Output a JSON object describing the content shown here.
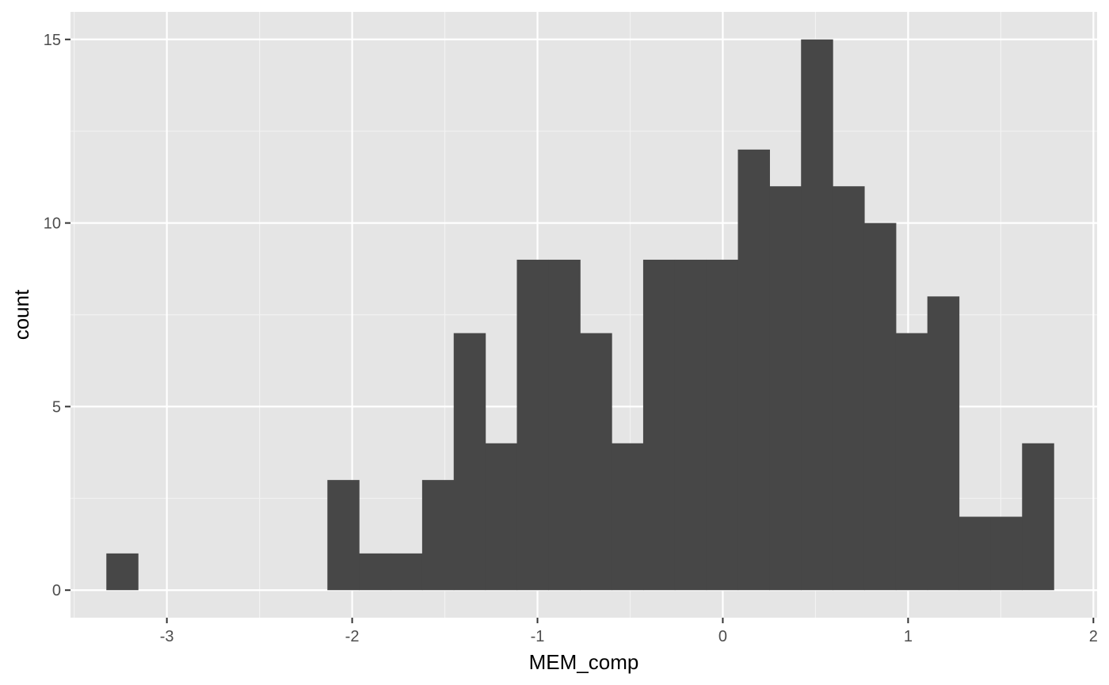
{
  "chart_data": {
    "type": "bar",
    "subtype": "histogram",
    "title": "",
    "xlabel": "MEM_comp",
    "ylabel": "count",
    "xlim": [
      -3.52,
      2.02
    ],
    "ylim": [
      -0.75,
      15.75
    ],
    "x_ticks": [
      -3,
      -2,
      -1,
      0,
      1,
      2
    ],
    "x_tick_labels": [
      "-3",
      "-2",
      "-1",
      "0",
      "1",
      "2"
    ],
    "y_ticks": [
      0,
      5,
      10,
      15
    ],
    "y_tick_labels": [
      "0",
      "5",
      "10",
      "15"
    ],
    "x_minor_ticks": [
      -3.5,
      -2.5,
      -1.5,
      -0.5,
      0.5,
      1.5
    ],
    "y_minor_ticks": [
      2.5,
      7.5,
      12.5
    ],
    "bin_width": 0.1704,
    "bin_edges": [
      -3.3265,
      -3.1561,
      -2.9857,
      -2.8153,
      -2.6449,
      -2.4745,
      -2.3041,
      -2.1337,
      -1.9633,
      -1.7929,
      -1.6225,
      -1.4521,
      -1.2817,
      -1.1113,
      -0.9409,
      -0.7705,
      -0.6001,
      -0.4297,
      -0.2593,
      -0.0889,
      0.0815,
      0.2519,
      0.4223,
      0.5927,
      0.7631,
      0.9335,
      1.1039,
      1.2743,
      1.4447,
      1.6151,
      1.7855
    ],
    "counts": [
      1,
      0,
      0,
      0,
      0,
      0,
      0,
      3,
      1,
      1,
      3,
      7,
      4,
      9,
      9,
      7,
      4,
      9,
      9,
      9,
      12,
      11,
      15,
      11,
      10,
      7,
      8,
      2,
      2,
      4
    ],
    "grid": true,
    "colors": {
      "bar_fill": "#474747",
      "panel_background": "#e5e5e5",
      "grid_major": "#ffffff",
      "grid_minor": "#f2f2f2"
    }
  }
}
